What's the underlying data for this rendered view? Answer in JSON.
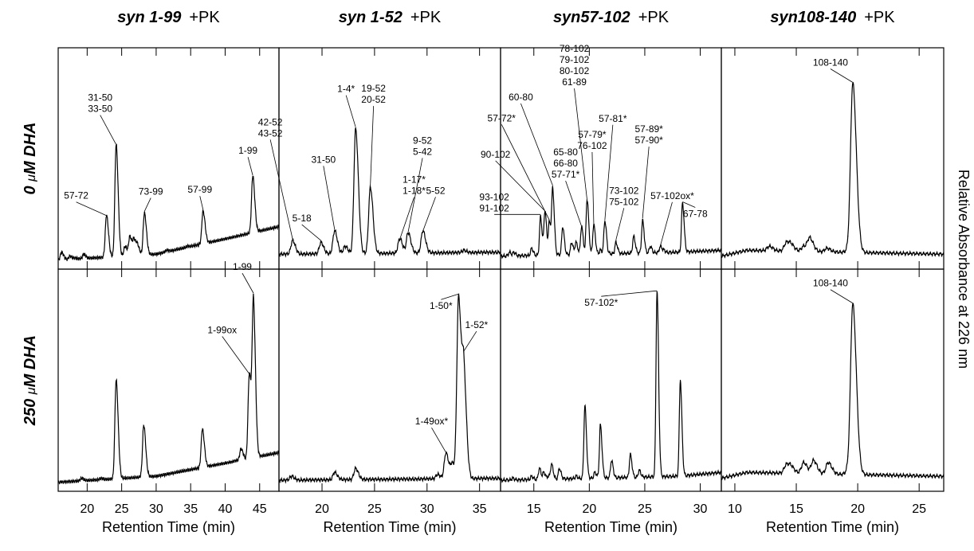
{
  "figure": {
    "y_axis_label": "Relative Absorbance at 226 nm",
    "row_labels": [
      {
        "prefix": "0 ",
        "mu": "μ",
        "suffix": "M DHA"
      },
      {
        "prefix": "250 ",
        "mu": "μ",
        "suffix": "M DHA"
      }
    ]
  },
  "chart_data": [
    {
      "type": "line",
      "title": "syn 1-99",
      "title_suffix": "+PK",
      "xlabel": "Retention Time (min)",
      "ylabel": "Relative Absorbance at 226 nm",
      "xlim": [
        15.8,
        47.8
      ],
      "xticks": [
        20,
        25,
        30,
        35,
        40,
        45
      ],
      "rows": [
        {
          "condition": "0 μM DHA",
          "baseline": [
            [
              15.8,
              0.03
            ],
            [
              30,
              0.06
            ],
            [
              47.8,
              0.2
            ]
          ],
          "peaks": [
            [
              16.3,
              0.07
            ],
            [
              17.5,
              0.05
            ],
            [
              18.2,
              0.04
            ],
            [
              19.5,
              0.06
            ],
            [
              21,
              0.04
            ],
            [
              22.8,
              0.26
            ],
            [
              24.2,
              0.62
            ],
            [
              25.5,
              0.1
            ],
            [
              26.2,
              0.15
            ],
            [
              26.8,
              0.13
            ],
            [
              27.3,
              0.1
            ],
            [
              28.3,
              0.27
            ],
            [
              31.5,
              0.08
            ],
            [
              34.5,
              0.1
            ],
            [
              36.8,
              0.28
            ],
            [
              42.2,
              0.1
            ],
            [
              44.0,
              0.46
            ]
          ],
          "annotations": [
            {
              "lines": [
                "57-72"
              ],
              "x": 22.8
            },
            {
              "lines": [
                "31-50",
                "33-50"
              ],
              "x": 24.2
            },
            {
              "lines": [
                "73-99"
              ],
              "x": 28.3
            },
            {
              "lines": [
                "57-99"
              ],
              "x": 36.8
            },
            {
              "lines": [
                "1-99"
              ],
              "x": 44.0
            }
          ]
        },
        {
          "condition": "250 μM DHA",
          "baseline": [
            [
              15.8,
              0.03
            ],
            [
              30,
              0.06
            ],
            [
              47.8,
              0.18
            ]
          ],
          "peaks": [
            [
              19.2,
              0.05
            ],
            [
              22,
              0.05
            ],
            [
              24.2,
              0.55
            ],
            [
              28.2,
              0.32
            ],
            [
              33.8,
              0.07
            ],
            [
              36.7,
              0.3
            ],
            [
              41.5,
              0.14
            ],
            [
              42.3,
              0.2
            ],
            [
              43.5,
              0.58
            ],
            [
              44.1,
              0.93
            ]
          ],
          "annotations": [
            {
              "lines": [
                "1-99"
              ],
              "x": 44.1
            },
            {
              "lines": [
                "1-99ox"
              ],
              "x": 43.5
            }
          ]
        }
      ]
    },
    {
      "type": "line",
      "title": "syn 1-52",
      "title_suffix": "+PK",
      "xlabel": "Retention Time (min)",
      "ylabel": "Relative Absorbance at 226 nm",
      "xlim": [
        15.9,
        37.0
      ],
      "xticks": [
        20,
        25,
        30,
        35
      ],
      "rows": [
        {
          "condition": "0 μM DHA",
          "baseline": [
            [
              15.9,
              0.06
            ],
            [
              37.0,
              0.07
            ]
          ],
          "peaks": [
            [
              17.2,
              0.13
            ],
            [
              19.9,
              0.12
            ],
            [
              21.2,
              0.18
            ],
            [
              22.2,
              0.1
            ],
            [
              23.2,
              0.7
            ],
            [
              24.6,
              0.4
            ],
            [
              27.4,
              0.14
            ],
            [
              28.2,
              0.17
            ],
            [
              29.6,
              0.18
            ],
            [
              33.5,
              0.08
            ]
          ],
          "annotations": [
            {
              "lines": [
                "42-52",
                "43-52"
              ],
              "x": 17.2
            },
            {
              "lines": [
                "5-18"
              ],
              "x": 19.9
            },
            {
              "lines": [
                "31-50"
              ],
              "x": 21.2
            },
            {
              "lines": [
                "1-4*"
              ],
              "x": 23.2
            },
            {
              "lines": [
                "19-52",
                "20-52"
              ],
              "x": 24.6
            },
            {
              "lines": [
                "1-17*",
                "1-18*"
              ],
              "x": 27.4
            },
            {
              "lines": [
                "9-52",
                "5-42"
              ],
              "x": 28.2
            },
            {
              "lines": [
                "5-52"
              ],
              "x": 29.6
            }
          ]
        },
        {
          "condition": "250 μM DHA",
          "baseline": [
            [
              15.9,
              0.04
            ],
            [
              37.0,
              0.05
            ]
          ],
          "peaks": [
            [
              17.1,
              0.06
            ],
            [
              21.2,
              0.08
            ],
            [
              23.2,
              0.1
            ],
            [
              31.0,
              0.07
            ],
            [
              31.8,
              0.18
            ],
            [
              32.4,
              0.12
            ],
            [
              33.0,
              0.97
            ],
            [
              33.5,
              0.55
            ]
          ],
          "annotations": [
            {
              "lines": [
                "1-50*"
              ],
              "x": 33.0
            },
            {
              "lines": [
                "1-52*"
              ],
              "x": 33.5
            },
            {
              "lines": [
                "1-49ox*"
              ],
              "x": 31.8
            }
          ]
        }
      ]
    },
    {
      "type": "line",
      "title": "syn57-102",
      "title_suffix": "+PK",
      "xlabel": "Retention Time (min)",
      "ylabel": "Relative Absorbance at 226 nm",
      "xlim": [
        12.0,
        31.9
      ],
      "xticks": [
        15,
        20,
        25,
        30
      ],
      "rows": [
        {
          "condition": "0 μM DHA",
          "baseline": [
            [
              12.0,
              0.05
            ],
            [
              28,
              0.07
            ],
            [
              31.9,
              0.08
            ]
          ],
          "peaks": [
            [
              12.8,
              0.07
            ],
            [
              13.2,
              0.07
            ],
            [
              14.8,
              0.09
            ],
            [
              15.6,
              0.25
            ],
            [
              16.0,
              0.28
            ],
            [
              16.4,
              0.22
            ],
            [
              16.7,
              0.38
            ],
            [
              17.6,
              0.2
            ],
            [
              18.4,
              0.12
            ],
            [
              18.8,
              0.12
            ],
            [
              19.3,
              0.2
            ],
            [
              19.8,
              0.34
            ],
            [
              20.4,
              0.21
            ],
            [
              21.0,
              0.08
            ],
            [
              21.4,
              0.23
            ],
            [
              22.4,
              0.12
            ],
            [
              24.0,
              0.15
            ],
            [
              24.8,
              0.23
            ],
            [
              25.5,
              0.1
            ],
            [
              26.4,
              0.1
            ],
            [
              26.7,
              0.08
            ],
            [
              28.4,
              0.32
            ]
          ],
          "annotations": [
            {
              "lines": [
                "93-102",
                "91-102"
              ],
              "x": 15.6
            },
            {
              "lines": [
                "90-102"
              ],
              "x": 16.0
            },
            {
              "lines": [
                "57-72*"
              ],
              "x": 16.4
            },
            {
              "lines": [
                "60-80"
              ],
              "x": 16.7
            },
            {
              "lines": [
                "65-80",
                "66-80",
                "57-71*"
              ],
              "x": 19.3
            },
            {
              "lines": [
                "78-102",
                "79-102",
                "80-102",
                "61-89"
              ],
              "x": 19.8
            },
            {
              "lines": [
                "57-79*",
                "76-102"
              ],
              "x": 20.4
            },
            {
              "lines": [
                "57-81*"
              ],
              "x": 21.4
            },
            {
              "lines": [
                "73-102",
                "75-102"
              ],
              "x": 22.4
            },
            {
              "lines": [
                "57-89*",
                "57-90*"
              ],
              "x": 24.8
            },
            {
              "lines": [
                "57-102ox*"
              ],
              "x": 26.4
            },
            {
              "lines": [
                "67-78"
              ],
              "x": 28.4
            }
          ]
        },
        {
          "condition": "250 μM DHA",
          "baseline": [
            [
              12.0,
              0.04
            ],
            [
              28,
              0.06
            ],
            [
              31.9,
              0.08
            ]
          ],
          "peaks": [
            [
              13.1,
              0.05
            ],
            [
              14.8,
              0.06
            ],
            [
              15.5,
              0.1
            ],
            [
              15.9,
              0.08
            ],
            [
              16.3,
              0.06
            ],
            [
              16.6,
              0.12
            ],
            [
              17.3,
              0.1
            ],
            [
              18.8,
              0.06
            ],
            [
              19.6,
              0.42
            ],
            [
              20.5,
              0.08
            ],
            [
              21.0,
              0.32
            ],
            [
              22.0,
              0.14
            ],
            [
              23.7,
              0.17
            ],
            [
              24.5,
              0.09
            ],
            [
              26.1,
              1.0
            ],
            [
              28.2,
              0.55
            ]
          ],
          "annotations": [
            {
              "lines": [
                "57-102*"
              ],
              "x": 26.1
            }
          ]
        }
      ]
    },
    {
      "type": "line",
      "title": "syn108-140",
      "title_suffix": "+PK",
      "xlabel": "Retention Time (min)",
      "ylabel": "Relative Absorbance at 226 nm",
      "xlim": [
        8.9,
        27.0
      ],
      "xticks": [
        10,
        15,
        20,
        25
      ],
      "rows": [
        {
          "condition": "0 μM DHA",
          "baseline": [
            [
              8.9,
              0.05
            ],
            [
              11,
              0.08
            ],
            [
              27,
              0.06
            ]
          ],
          "peaks": [
            [
              12.8,
              0.1
            ],
            [
              14.2,
              0.12
            ],
            [
              14.6,
              0.1
            ],
            [
              15.6,
              0.1
            ],
            [
              16.1,
              0.14
            ],
            [
              17.5,
              0.09
            ],
            [
              19.2,
              0.08
            ],
            [
              19.6,
              0.93
            ]
          ],
          "annotations": [
            {
              "lines": [
                "108-140"
              ],
              "x": 19.6
            }
          ]
        },
        {
          "condition": "250 μM DHA",
          "baseline": [
            [
              8.9,
              0.05
            ],
            [
              11,
              0.08
            ],
            [
              27,
              0.06
            ]
          ],
          "peaks": [
            [
              14.2,
              0.12
            ],
            [
              14.6,
              0.1
            ],
            [
              15.6,
              0.13
            ],
            [
              16.4,
              0.14
            ],
            [
              17.6,
              0.13
            ],
            [
              19.2,
              0.09
            ],
            [
              19.6,
              0.93
            ]
          ],
          "annotations": [
            {
              "lines": [
                "108-140"
              ],
              "x": 19.6
            }
          ]
        }
      ]
    }
  ]
}
